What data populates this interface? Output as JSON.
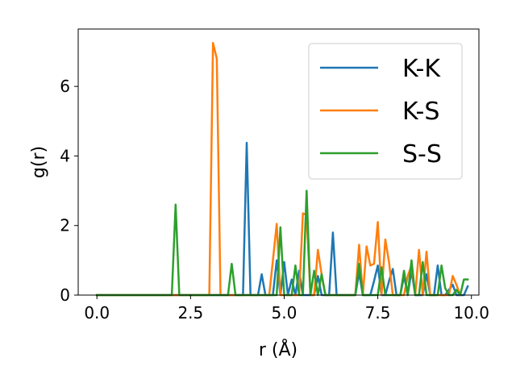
{
  "chart_data": {
    "type": "line",
    "xlabel": "r (Å)",
    "ylabel": "g(r)",
    "xlim": [
      -0.5,
      10.2
    ],
    "ylim": [
      0,
      7.65
    ],
    "xticks": [
      0.0,
      2.5,
      5.0,
      7.5,
      10.0
    ],
    "xtick_labels": [
      "0.0",
      "2.5",
      "5.0",
      "7.5",
      "10.0"
    ],
    "yticks": [
      0,
      2,
      4,
      6
    ],
    "ytick_labels": [
      "0",
      "2",
      "4",
      "6"
    ],
    "grid": false,
    "legend_position": "top-right",
    "series": [
      {
        "name": "K-K",
        "color": "#1f77b4",
        "x": [
          0.0,
          3.9,
          4.0,
          4.1,
          4.3,
          4.4,
          4.5,
          4.6,
          4.7,
          4.8,
          4.9,
          5.0,
          5.1,
          5.2,
          5.3,
          5.4,
          5.5,
          5.6,
          5.7,
          5.8,
          5.9,
          6.0,
          6.1,
          6.2,
          6.3,
          6.4,
          6.9,
          7.0,
          7.1,
          7.3,
          7.4,
          7.5,
          7.6,
          7.7,
          7.8,
          7.9,
          8.0,
          8.1,
          8.2,
          8.3,
          8.4,
          8.5,
          8.6,
          8.7,
          8.8,
          8.9,
          9.0,
          9.1,
          9.2,
          9.3,
          9.4,
          9.5,
          9.6,
          9.7,
          9.8,
          9.9
        ],
        "y": [
          0.0,
          0.0,
          4.38,
          0.0,
          0.0,
          0.6,
          0.0,
          0.0,
          0.0,
          1.0,
          0.0,
          0.95,
          0.0,
          0.45,
          0.0,
          0.7,
          0.0,
          0.0,
          0.0,
          0.0,
          0.55,
          0.0,
          0.0,
          0.0,
          1.8,
          0.0,
          0.0,
          0.65,
          0.0,
          0.0,
          0.4,
          0.85,
          0.0,
          0.0,
          0.4,
          0.75,
          0.0,
          0.0,
          0.55,
          0.0,
          0.7,
          0.0,
          0.0,
          0.0,
          0.6,
          0.0,
          0.0,
          0.85,
          0.0,
          0.0,
          0.15,
          0.3,
          0.0,
          0.0,
          0.0,
          0.25
        ]
      },
      {
        "name": "K-S",
        "color": "#ff7f0e",
        "x": [
          0.0,
          3.0,
          3.1,
          3.2,
          3.3,
          4.6,
          4.7,
          4.8,
          4.9,
          5.0,
          5.4,
          5.5,
          5.6,
          5.7,
          5.8,
          5.9,
          6.0,
          6.1,
          6.2,
          6.9,
          7.0,
          7.1,
          7.2,
          7.3,
          7.4,
          7.5,
          7.6,
          7.7,
          7.8,
          7.9,
          8.0,
          8.1,
          8.2,
          8.3,
          8.4,
          8.5,
          8.6,
          8.7,
          8.8,
          8.9,
          9.0,
          9.4,
          9.5,
          9.6,
          9.7
        ],
        "y": [
          0.0,
          0.0,
          7.25,
          6.8,
          0.0,
          0.0,
          1.0,
          2.05,
          0.0,
          0.0,
          0.0,
          2.35,
          2.3,
          0.0,
          0.0,
          1.3,
          0.6,
          0.0,
          0.0,
          0.0,
          1.45,
          0.0,
          1.4,
          0.85,
          0.9,
          2.1,
          0.0,
          1.6,
          0.95,
          0.0,
          0.0,
          0.0,
          0.0,
          0.55,
          0.85,
          0.0,
          1.3,
          0.0,
          1.25,
          0.0,
          0.0,
          0.0,
          0.55,
          0.3,
          0.0
        ]
      },
      {
        "name": "S-S",
        "color": "#2ca02c",
        "x": [
          0.0,
          2.0,
          2.1,
          2.2,
          3.5,
          3.6,
          3.7,
          4.7,
          4.8,
          4.9,
          5.0,
          5.2,
          5.3,
          5.4,
          5.5,
          5.6,
          5.7,
          5.8,
          5.9,
          6.0,
          6.1,
          6.9,
          7.0,
          7.1,
          7.5,
          7.6,
          7.7,
          8.1,
          8.2,
          8.3,
          8.4,
          8.5,
          8.6,
          8.7,
          8.8,
          9.1,
          9.2,
          9.3,
          9.4,
          9.5,
          9.6,
          9.7,
          9.8,
          9.9
        ],
        "y": [
          0.0,
          0.0,
          2.6,
          0.0,
          0.0,
          0.9,
          0.0,
          0.0,
          0.0,
          1.95,
          0.0,
          0.0,
          0.85,
          0.0,
          0.0,
          3.0,
          0.0,
          0.7,
          0.0,
          0.6,
          0.0,
          0.0,
          0.9,
          0.0,
          0.0,
          0.8,
          0.0,
          0.0,
          0.7,
          0.0,
          1.0,
          0.0,
          0.0,
          0.95,
          0.0,
          0.0,
          0.85,
          0.2,
          0.0,
          0.0,
          0.15,
          0.0,
          0.45,
          0.45
        ]
      }
    ]
  }
}
